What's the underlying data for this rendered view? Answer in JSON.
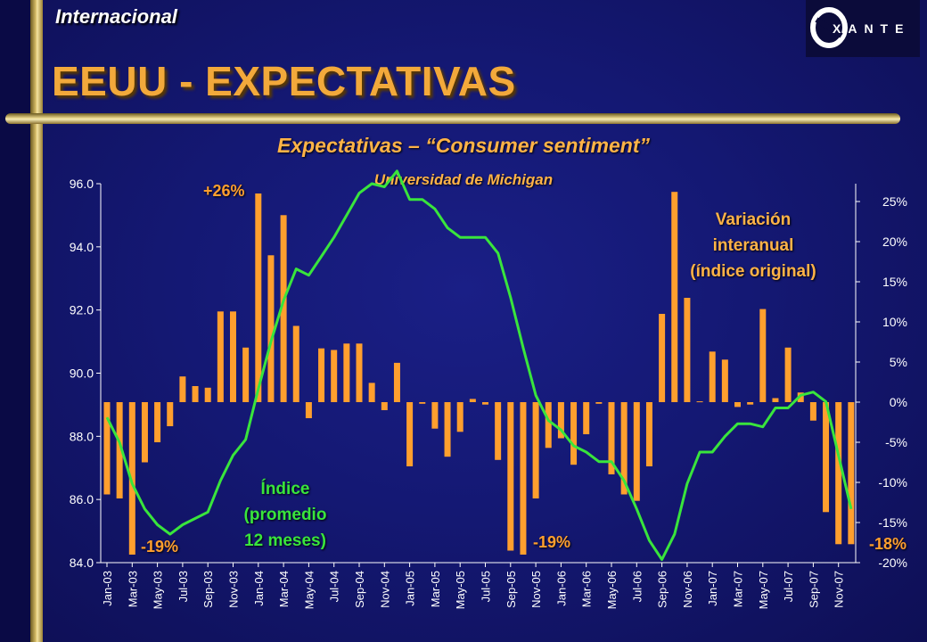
{
  "header": {
    "section": "Internacional",
    "title": "EEUU - EXPECTATIVAS",
    "logo_text": "EXANTE"
  },
  "colors": {
    "background": "#141873",
    "bars": "#ff9f2e",
    "line": "#39e53c",
    "title": "#f2a93b",
    "axis_text": "#ffffff"
  },
  "chart_data": {
    "type": "bar",
    "title": "Expectativas – “Consumer sentiment”",
    "subtitle": "Universidad de Michigan",
    "categories": [
      "Jan-03",
      "Feb-03",
      "Mar-03",
      "Apr-03",
      "May-03",
      "Jun-03",
      "Jul-03",
      "Aug-03",
      "Sep-03",
      "Oct-03",
      "Nov-03",
      "Dec-03",
      "Jan-04",
      "Feb-04",
      "Mar-04",
      "Apr-04",
      "May-04",
      "Jun-04",
      "Jul-04",
      "Aug-04",
      "Sep-04",
      "Oct-04",
      "Nov-04",
      "Dec-04",
      "Jan-05",
      "Feb-05",
      "Mar-05",
      "Apr-05",
      "May-05",
      "Jun-05",
      "Jul-05",
      "Aug-05",
      "Sep-05",
      "Oct-05",
      "Nov-05",
      "Dec-05",
      "Jan-06",
      "Feb-06",
      "Mar-06",
      "Apr-06",
      "May-06",
      "Jun-06",
      "Jul-06",
      "Aug-06",
      "Sep-06",
      "Oct-06",
      "Nov-06",
      "Dec-06",
      "Jan-07",
      "Feb-07",
      "Mar-07",
      "Apr-07",
      "May-07",
      "Jun-07",
      "Jul-07",
      "Aug-07",
      "Sep-07",
      "Oct-07",
      "Nov-07",
      "Dec-07"
    ],
    "x_tick_labels": [
      "Jan-03",
      "Mar-03",
      "May-03",
      "Jul-03",
      "Sep-03",
      "Nov-03",
      "Jan-04",
      "Mar-04",
      "May-04",
      "Jul-04",
      "Sep-04",
      "Nov-04",
      "Jan-05",
      "Mar-05",
      "May-05",
      "Jul-05",
      "Sep-05",
      "Nov-05",
      "Jan-06",
      "Mar-06",
      "May-06",
      "Jul-06",
      "Sep-06",
      "Nov-06",
      "Jan-07",
      "Mar-07",
      "May-07",
      "Jul-07",
      "Sep-07",
      "Nov-07"
    ],
    "series": [
      {
        "name": "Variación interanual (índice original)",
        "type": "bar",
        "axis": "right",
        "values": [
          -11.5,
          -12,
          -19,
          -7.5,
          -5,
          -3,
          3.2,
          2,
          1.8,
          11.3,
          11.3,
          6.8,
          26,
          18.3,
          23.3,
          9.5,
          -2,
          6.7,
          6.5,
          7.3,
          7.3,
          2.4,
          -1,
          4.9,
          -8,
          -0.2,
          -3.3,
          -6.8,
          -3.7,
          0.4,
          -0.3,
          -7.2,
          -18.5,
          -19,
          -12,
          -5.7,
          -4.5,
          -7.8,
          -4,
          -0.2,
          -9,
          -11.5,
          -12.3,
          -8,
          11,
          26.2,
          13,
          0.1,
          6.3,
          5.3,
          -0.6,
          -0.3,
          11.6,
          0.5,
          6.8,
          1.2,
          -2.3,
          -13.7,
          -17.7,
          -17.7
        ]
      },
      {
        "name": "Índice (promedio 12 meses)",
        "type": "line",
        "axis": "left",
        "values": [
          88.6,
          87.8,
          86.5,
          85.7,
          85.2,
          84.9,
          85.2,
          85.4,
          85.6,
          86.6,
          87.4,
          87.9,
          89.5,
          91,
          92.3,
          93.3,
          93.1,
          93.7,
          94.3,
          95,
          95.7,
          96,
          95.9,
          96.4,
          95.5,
          95.5,
          95.2,
          94.6,
          94.3,
          94.3,
          94.3,
          93.8,
          92.4,
          90.8,
          89.3,
          88.5,
          88.2,
          87.7,
          87.5,
          87.2,
          87.2,
          86.6,
          85.7,
          84.7,
          84.1,
          84.9,
          86.5,
          87.5,
          87.5,
          88,
          88.4,
          88.4,
          88.3,
          88.9,
          88.9,
          89.3,
          89.4,
          89.1,
          87.4,
          85.7
        ]
      }
    ],
    "y_left": {
      "ticks": [
        "84.0",
        "86.0",
        "88.0",
        "90.0",
        "92.0",
        "94.0",
        "96.0"
      ],
      "ylim": [
        84,
        96
      ]
    },
    "y_right": {
      "ticks": [
        "-20%",
        "-15%",
        "-10%",
        "-5%",
        "0%",
        "5%",
        "10%",
        "15%",
        "20%",
        "25%"
      ],
      "ylim": [
        -20,
        27
      ]
    },
    "annotations": {
      "peak_2004": "+26%",
      "low_2003": "-19%",
      "low_2005": "-19%",
      "last_2007": "-18%",
      "variation_label": [
        "Variación",
        "interanual",
        "(índice original)"
      ],
      "index_label": [
        "Índice",
        "(promedio",
        "12 meses)"
      ]
    },
    "grid": false,
    "legend": "none"
  }
}
